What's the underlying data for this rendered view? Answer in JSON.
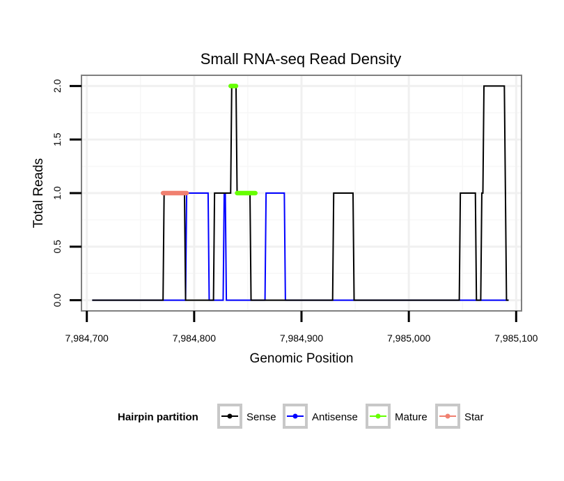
{
  "chart_data": {
    "type": "line",
    "title": "Small RNA-seq Read Density",
    "xlabel": "Genomic Position",
    "ylabel": "Total Reads",
    "xlim": [
      7984695,
      7985105
    ],
    "ylim": [
      -0.1,
      2.1
    ],
    "x_ticks": [
      7984700,
      7984800,
      7984900,
      7985000,
      7985100
    ],
    "x_tick_labels": [
      "7,984,700",
      "7,984,800",
      "7,984,900",
      "7,985,000",
      "7,985,100"
    ],
    "y_ticks": [
      0,
      0.5,
      1,
      1.5,
      2
    ],
    "y_tick_labels": [
      "0.0",
      "0.5",
      "1.0",
      "1.5",
      "2.0"
    ],
    "grid": true,
    "legend": {
      "title": "Hairpin partition",
      "placement": "bottom",
      "entries": [
        {
          "name": "Sense",
          "color": "#000000"
        },
        {
          "name": "Antisense",
          "color": "#0000ff"
        },
        {
          "name": "Mature",
          "color": "#66ff00"
        },
        {
          "name": "Star",
          "color": "#f08070"
        }
      ]
    },
    "series": [
      {
        "name": "Antisense",
        "color": "#0000ff",
        "points": [
          [
            7984705,
            0
          ],
          [
            7984792,
            0
          ],
          [
            7984793,
            1
          ],
          [
            7984813,
            1
          ],
          [
            7984814,
            0
          ],
          [
            7984827,
            0
          ],
          [
            7984828,
            1
          ],
          [
            7984829,
            1
          ],
          [
            7984830,
            0
          ],
          [
            7984866,
            0
          ],
          [
            7984867,
            1
          ],
          [
            7984884,
            1
          ],
          [
            7984885,
            0
          ],
          [
            7985093,
            0
          ]
        ]
      },
      {
        "name": "Sense",
        "color": "#000000",
        "points": [
          [
            7984705,
            0
          ],
          [
            7984771,
            0
          ],
          [
            7984772,
            1
          ],
          [
            7984791,
            1
          ],
          [
            7984792,
            0
          ],
          [
            7984818,
            0
          ],
          [
            7984819,
            1
          ],
          [
            7984834,
            1
          ],
          [
            7984835,
            2
          ],
          [
            7984839,
            2
          ],
          [
            7984840,
            1
          ],
          [
            7984852,
            1
          ],
          [
            7984853,
            0
          ],
          [
            7984929,
            0
          ],
          [
            7984930,
            1
          ],
          [
            7984948,
            1
          ],
          [
            7984949,
            0
          ],
          [
            7985047,
            0
          ],
          [
            7985048,
            1
          ],
          [
            7985062,
            1
          ],
          [
            7985063,
            0
          ],
          [
            7985067,
            0
          ],
          [
            7985068,
            1
          ],
          [
            7985069,
            1
          ],
          [
            7985070,
            2
          ],
          [
            7985089,
            2
          ],
          [
            7985091,
            0
          ],
          [
            7985093,
            0
          ]
        ]
      },
      {
        "name": "Mature",
        "color": "#66ff00",
        "segments": [
          [
            [
              7984834,
              2
            ],
            [
              7984839,
              2
            ]
          ],
          [
            [
              7984840,
              1
            ],
            [
              7984857,
              1
            ]
          ]
        ]
      },
      {
        "name": "Star",
        "color": "#f08070",
        "segments": [
          [
            [
              7984771,
              1
            ],
            [
              7984793,
              1
            ]
          ]
        ]
      }
    ]
  }
}
